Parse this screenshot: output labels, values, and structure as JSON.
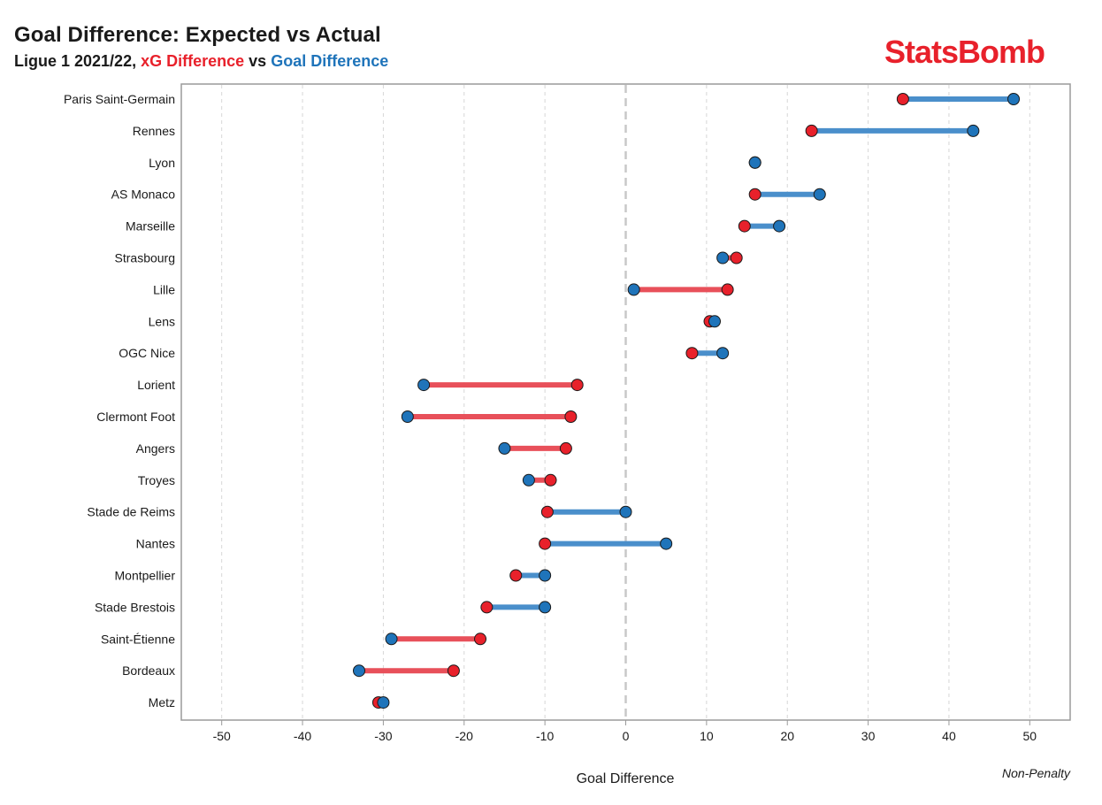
{
  "header": {
    "title": "Goal Difference: Expected vs Actual",
    "subtitle_prefix": "Ligue 1 2021/22,",
    "subtitle_xg": "xG Difference",
    "subtitle_vs": "vs",
    "subtitle_gd": "Goal Difference",
    "logo": "StatsBomb",
    "note": "Non-Penalty"
  },
  "colors": {
    "xg": "#e8212b",
    "gd": "#1f74ba",
    "bar_blue": "#4a8fcb",
    "bar_red": "#e8505a"
  },
  "chart_data": {
    "type": "dumbbell",
    "xlabel": "Goal Difference",
    "xlim": [
      -55,
      55
    ],
    "xticks": [
      -50,
      -40,
      -30,
      -20,
      -10,
      0,
      10,
      20,
      30,
      40,
      50
    ],
    "grid": true,
    "series": [
      {
        "name": "xG Difference",
        "color": "#e8212b"
      },
      {
        "name": "Goal Difference",
        "color": "#1f74ba"
      }
    ],
    "categories": [
      "Paris Saint-Germain",
      "Rennes",
      "Lyon",
      "AS Monaco",
      "Marseille",
      "Strasbourg",
      "Lille",
      "Lens",
      "OGC Nice",
      "Lorient",
      "Clermont Foot",
      "Angers",
      "Troyes",
      "Stade de Reims",
      "Nantes",
      "Montpellier",
      "Stade Brestois",
      "Saint-Étienne",
      "Bordeaux",
      "Metz"
    ],
    "xg_diff": [
      34.3,
      23.0,
      16.0,
      16.0,
      14.7,
      13.7,
      12.6,
      10.4,
      8.2,
      -6.0,
      -6.8,
      -7.4,
      -9.3,
      -9.7,
      -10.0,
      -13.6,
      -17.2,
      -18.0,
      -21.3,
      -30.6
    ],
    "goal_diff": [
      48,
      43,
      16,
      24,
      19,
      12,
      1,
      11,
      12,
      -25,
      -27,
      -15,
      -12,
      0,
      5,
      -10,
      -10,
      -29,
      -33,
      -30
    ]
  }
}
